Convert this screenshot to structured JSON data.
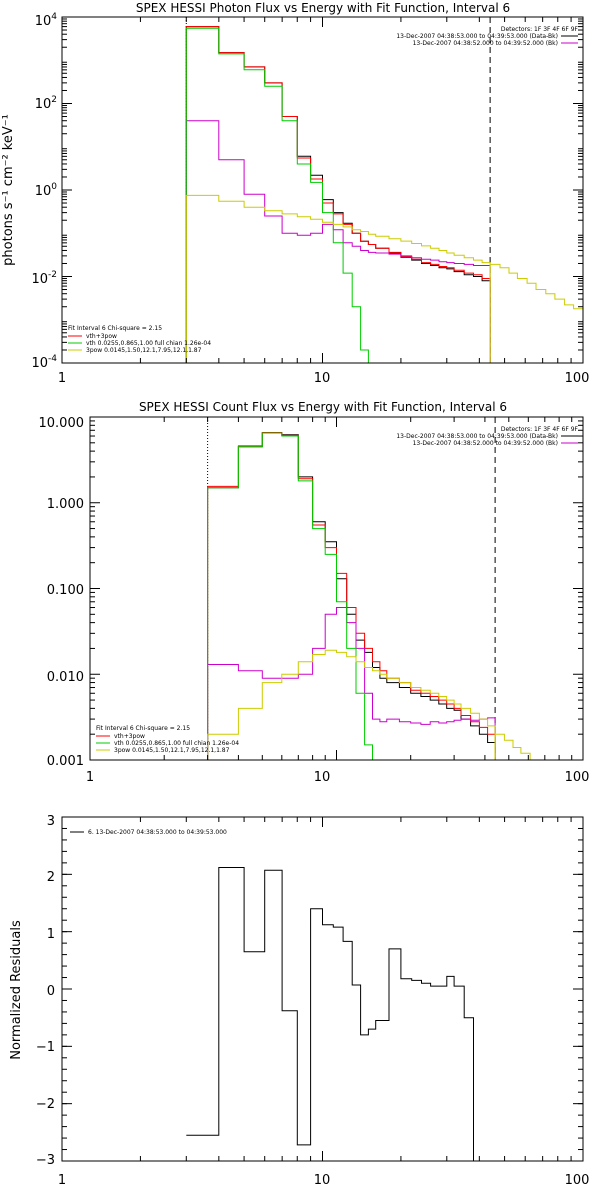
{
  "chart_data": [
    {
      "type": "line",
      "title": "SPEX HESSI Photon Flux vs Energy with Fit Function, Interval 6",
      "xlabel": "",
      "ylabel": "photons s⁻¹ cm⁻² keV⁻¹",
      "xscale": "log",
      "yscale": "log",
      "xlim": [
        1,
        100
      ],
      "ylim": [
        0.0001,
        10000
      ],
      "x_ticks": [
        {
          "v": 1,
          "label": "1"
        },
        {
          "v": 10,
          "label": "10"
        },
        {
          "v": 100,
          "label": "100"
        }
      ],
      "y_ticks": [
        {
          "v": 0.0001,
          "base": "10",
          "exp": "-4"
        },
        {
          "v": 0.01,
          "base": "10",
          "exp": "-2"
        },
        {
          "v": 1,
          "base": "10",
          "exp": "0"
        },
        {
          "v": 100,
          "base": "10",
          "exp": "2"
        },
        {
          "v": 10000,
          "base": "10",
          "exp": "4"
        }
      ],
      "vlines": [
        {
          "x": 3,
          "style": "dotted",
          "color": "#000000"
        },
        {
          "x": 44,
          "style": "dashed",
          "color": "#000000"
        }
      ],
      "legend_top": [
        {
          "text": "Detectors: 1F 3F 4F 6F 9F",
          "color": null
        },
        {
          "text": "13-Dec-2007 04:38:53.000 to 04:39:53.000 (Data-Bk)",
          "color": "#000000"
        },
        {
          "text": "13-Dec-2007 04:38:52.000 to 04:39:52.000 (Bk)",
          "color": "#cc00cc"
        }
      ],
      "legend_bottom": [
        {
          "text": "Fit Interval  6    Chi-square = 2.15",
          "color": null
        },
        {
          "text": "vth+3pow",
          "color": "#ff0000"
        },
        {
          "text": "vth 0.0255,0.865,1.00  full chian 1.26e-04",
          "color": "#00cc00"
        },
        {
          "text": "3pow 0.0145,1.50,12.1,7.95,12.1,1.87",
          "color": "#cccc00"
        }
      ],
      "edges": [
        3,
        4,
        5,
        6,
        7,
        8,
        9,
        10,
        11,
        12,
        13,
        14,
        15,
        16,
        18,
        20,
        22,
        24,
        26,
        28,
        30,
        32,
        35,
        38,
        41,
        44
      ],
      "series": [
        {
          "name": "Data-Bk",
          "color": "#000000",
          "values": [
            6000,
            1500,
            700,
            300,
            50,
            6,
            2.2,
            0.6,
            0.3,
            0.17,
            0.1,
            0.065,
            0.055,
            0.045,
            0.035,
            0.028,
            0.024,
            0.02,
            0.018,
            0.016,
            0.015,
            0.013,
            0.011,
            0.01,
            0.008
          ]
        },
        {
          "name": "vth+3pow",
          "color": "#ff0000",
          "values": [
            6000,
            1500,
            700,
            300,
            50,
            5.5,
            1.8,
            0.5,
            0.28,
            0.16,
            0.1,
            0.065,
            0.055,
            0.045,
            0.036,
            0.029,
            0.025,
            0.021,
            0.019,
            0.017,
            0.016,
            0.014,
            0.012,
            0.011,
            0.009
          ]
        },
        {
          "name": "Bk",
          "color": "#cc00cc",
          "values": [
            40,
            5,
            0.8,
            0.25,
            0.1,
            0.09,
            0.1,
            0.16,
            0.12,
            0.06,
            0.05,
            0.04,
            0.036,
            0.035,
            0.033,
            0.03,
            0.027,
            0.025,
            0.024,
            0.022,
            0.021,
            0.02,
            0.019,
            0.018,
            0.018
          ]
        },
        {
          "name": "vth",
          "color": "#00cc00",
          "values": [
            5500,
            1400,
            600,
            250,
            40,
            4,
            1.5,
            0.3,
            0.06,
            0.012,
            0.002,
            0.0002,
            8e-05
          ]
        },
        {
          "name": "3pow",
          "color": "#cccc00",
          "values": [
            0.75,
            0.55,
            0.4,
            0.33,
            0.28,
            0.24,
            0.21,
            0.18,
            0.16,
            0.14,
            0.12,
            0.11,
            0.095,
            0.085,
            0.075,
            0.066,
            0.058,
            0.051,
            0.045,
            0.04,
            0.035,
            0.031,
            0.027,
            0.024,
            0.021
          ]
        },
        {
          "name": "3pow-tail",
          "color": "#cccc00",
          "values": [
            0.019,
            0.016,
            0.012,
            0.009,
            0.007,
            0.005,
            0.004,
            0.003,
            0.0022,
            0.0018
          ]
        }
      ]
    },
    {
      "type": "line",
      "title": "SPEX HESSI Count Flux vs Energy with Fit Function, Interval 6",
      "xlabel": "",
      "ylabel": "",
      "xscale": "log",
      "yscale": "log",
      "xlim": [
        1,
        100
      ],
      "ylim": [
        0.001,
        10
      ],
      "x_ticks": [
        {
          "v": 1,
          "label": "1"
        },
        {
          "v": 10,
          "label": "10"
        },
        {
          "v": 100,
          "label": "100"
        }
      ],
      "y_ticks": [
        {
          "v": 0.001,
          "label": "0.001"
        },
        {
          "v": 0.01,
          "label": "0.010"
        },
        {
          "v": 0.1,
          "label": "0.100"
        },
        {
          "v": 1,
          "label": "1.000"
        },
        {
          "v": 10,
          "label": "10.000"
        }
      ],
      "vlines": [
        {
          "x": 3,
          "style": "dotted",
          "color": "#000000"
        },
        {
          "x": 44,
          "style": "dashed",
          "color": "#000000"
        }
      ],
      "legend_top": [
        {
          "text": "Detectors: 1F 3F 4F 6F 9F",
          "color": null
        },
        {
          "text": "13-Dec-2007 04:38:53.000 to 04:39:53.000 (Data-Bk)",
          "color": "#000000"
        },
        {
          "text": "13-Dec-2007 04:38:52.000 to 04:39:52.000 (Bk)",
          "color": "#cc00cc"
        }
      ],
      "legend_bottom": [
        {
          "text": "Fit Interval  6    Chi-square = 2.15",
          "color": null
        },
        {
          "text": "vth+3pow",
          "color": "#ff0000"
        },
        {
          "text": "vth 0.0255,0.865,1.00  full chian 1.26e-04",
          "color": "#00cc00"
        },
        {
          "text": "3pow 0.0145,1.50,12.1,7.95,12.1,1.87",
          "color": "#cccc00"
        }
      ],
      "edges": [
        3,
        4,
        5,
        6,
        7,
        8,
        9,
        10,
        11,
        12,
        13,
        14,
        15,
        16,
        18,
        20,
        22,
        24,
        26,
        28,
        30,
        32,
        35,
        38,
        41,
        44
      ],
      "series": [
        {
          "name": "Data-Bk",
          "color": "#000000",
          "values": [
            1.5,
            4.5,
            6.5,
            6.2,
            2.0,
            0.6,
            0.35,
            0.13,
            0.05,
            0.025,
            0.018,
            0.012,
            0.009,
            0.008,
            0.007,
            0.006,
            0.0055,
            0.005,
            0.0045,
            0.004,
            0.0038,
            0.003,
            0.0025,
            0.002,
            0.0016
          ]
        },
        {
          "name": "vth+3pow",
          "color": "#ff0000",
          "values": [
            1.55,
            4.6,
            6.6,
            6.1,
            1.9,
            0.55,
            0.3,
            0.15,
            0.06,
            0.03,
            0.02,
            0.014,
            0.011,
            0.009,
            0.008,
            0.0065,
            0.006,
            0.0055,
            0.005,
            0.0045,
            0.004,
            0.0033,
            0.0028,
            0.0024,
            0.002
          ]
        },
        {
          "name": "Bk",
          "color": "#cc00cc",
          "values": [
            0.013,
            0.011,
            0.009,
            0.009,
            0.01,
            0.02,
            0.05,
            0.06,
            0.04,
            0.02,
            0.006,
            0.003,
            0.0028,
            0.003,
            0.0028,
            0.0027,
            0.0026,
            0.0028,
            0.0027,
            0.0028,
            0.0029,
            0.003,
            0.0029,
            0.003,
            0.0031
          ]
        },
        {
          "name": "vth",
          "color": "#00cc00",
          "values": [
            1.5,
            4.5,
            6.5,
            6.0,
            1.8,
            0.5,
            0.25,
            0.07,
            0.02,
            0.006,
            0.0015,
            0.0008
          ]
        },
        {
          "name": "3pow",
          "color": "#cccc00",
          "values": [
            0.002,
            0.004,
            0.008,
            0.01,
            0.014,
            0.017,
            0.019,
            0.018,
            0.016,
            0.014,
            0.012,
            0.011,
            0.01,
            0.009,
            0.008,
            0.007,
            0.0065,
            0.006,
            0.0055,
            0.005,
            0.0045,
            0.004,
            0.0035,
            0.003,
            0.0025
          ]
        },
        {
          "name": "3pow-tail",
          "color": "#cccc00",
          "values": [
            0.002,
            0.0017,
            0.0014,
            0.0012,
            0.001,
            0.0009
          ]
        }
      ]
    },
    {
      "type": "line",
      "title": "",
      "xlabel": "",
      "ylabel": "Normalized Residuals",
      "xscale": "log",
      "yscale": "linear",
      "xlim": [
        1,
        100
      ],
      "ylim": [
        -3,
        3
      ],
      "x_ticks": [
        {
          "v": 1,
          "label": "1"
        },
        {
          "v": 10,
          "label": "10"
        },
        {
          "v": 100,
          "label": "100"
        }
      ],
      "y_ticks": [
        {
          "v": -3,
          "label": "−3"
        },
        {
          "v": -2,
          "label": "−2"
        },
        {
          "v": -1,
          "label": "−1"
        },
        {
          "v": 0,
          "label": "0"
        },
        {
          "v": 1,
          "label": "1"
        },
        {
          "v": 2,
          "label": "2"
        },
        {
          "v": 3,
          "label": "3"
        }
      ],
      "legend_top": [
        {
          "text": "6. 13-Dec-2007 04:38:53.000 to 04:39:53.000",
          "color": "#000000"
        }
      ],
      "edges": [
        3,
        4,
        5,
        6,
        7,
        8,
        9,
        10,
        11,
        12,
        13,
        14,
        15,
        16,
        18,
        20,
        22,
        24,
        26,
        28,
        30,
        32,
        35,
        38,
        41,
        44
      ],
      "series": [
        {
          "name": "residuals",
          "color": "#000000",
          "values": [
            -2.55,
            2.12,
            0.65,
            2.07,
            -0.38,
            -2.72,
            1.4,
            1.12,
            1.08,
            0.83,
            0.07,
            -0.8,
            -0.7,
            -0.55,
            0.7,
            0.18,
            0.15,
            0.1,
            0.05,
            0.05,
            0.22,
            0.05,
            -0.5
          ]
        }
      ]
    }
  ]
}
